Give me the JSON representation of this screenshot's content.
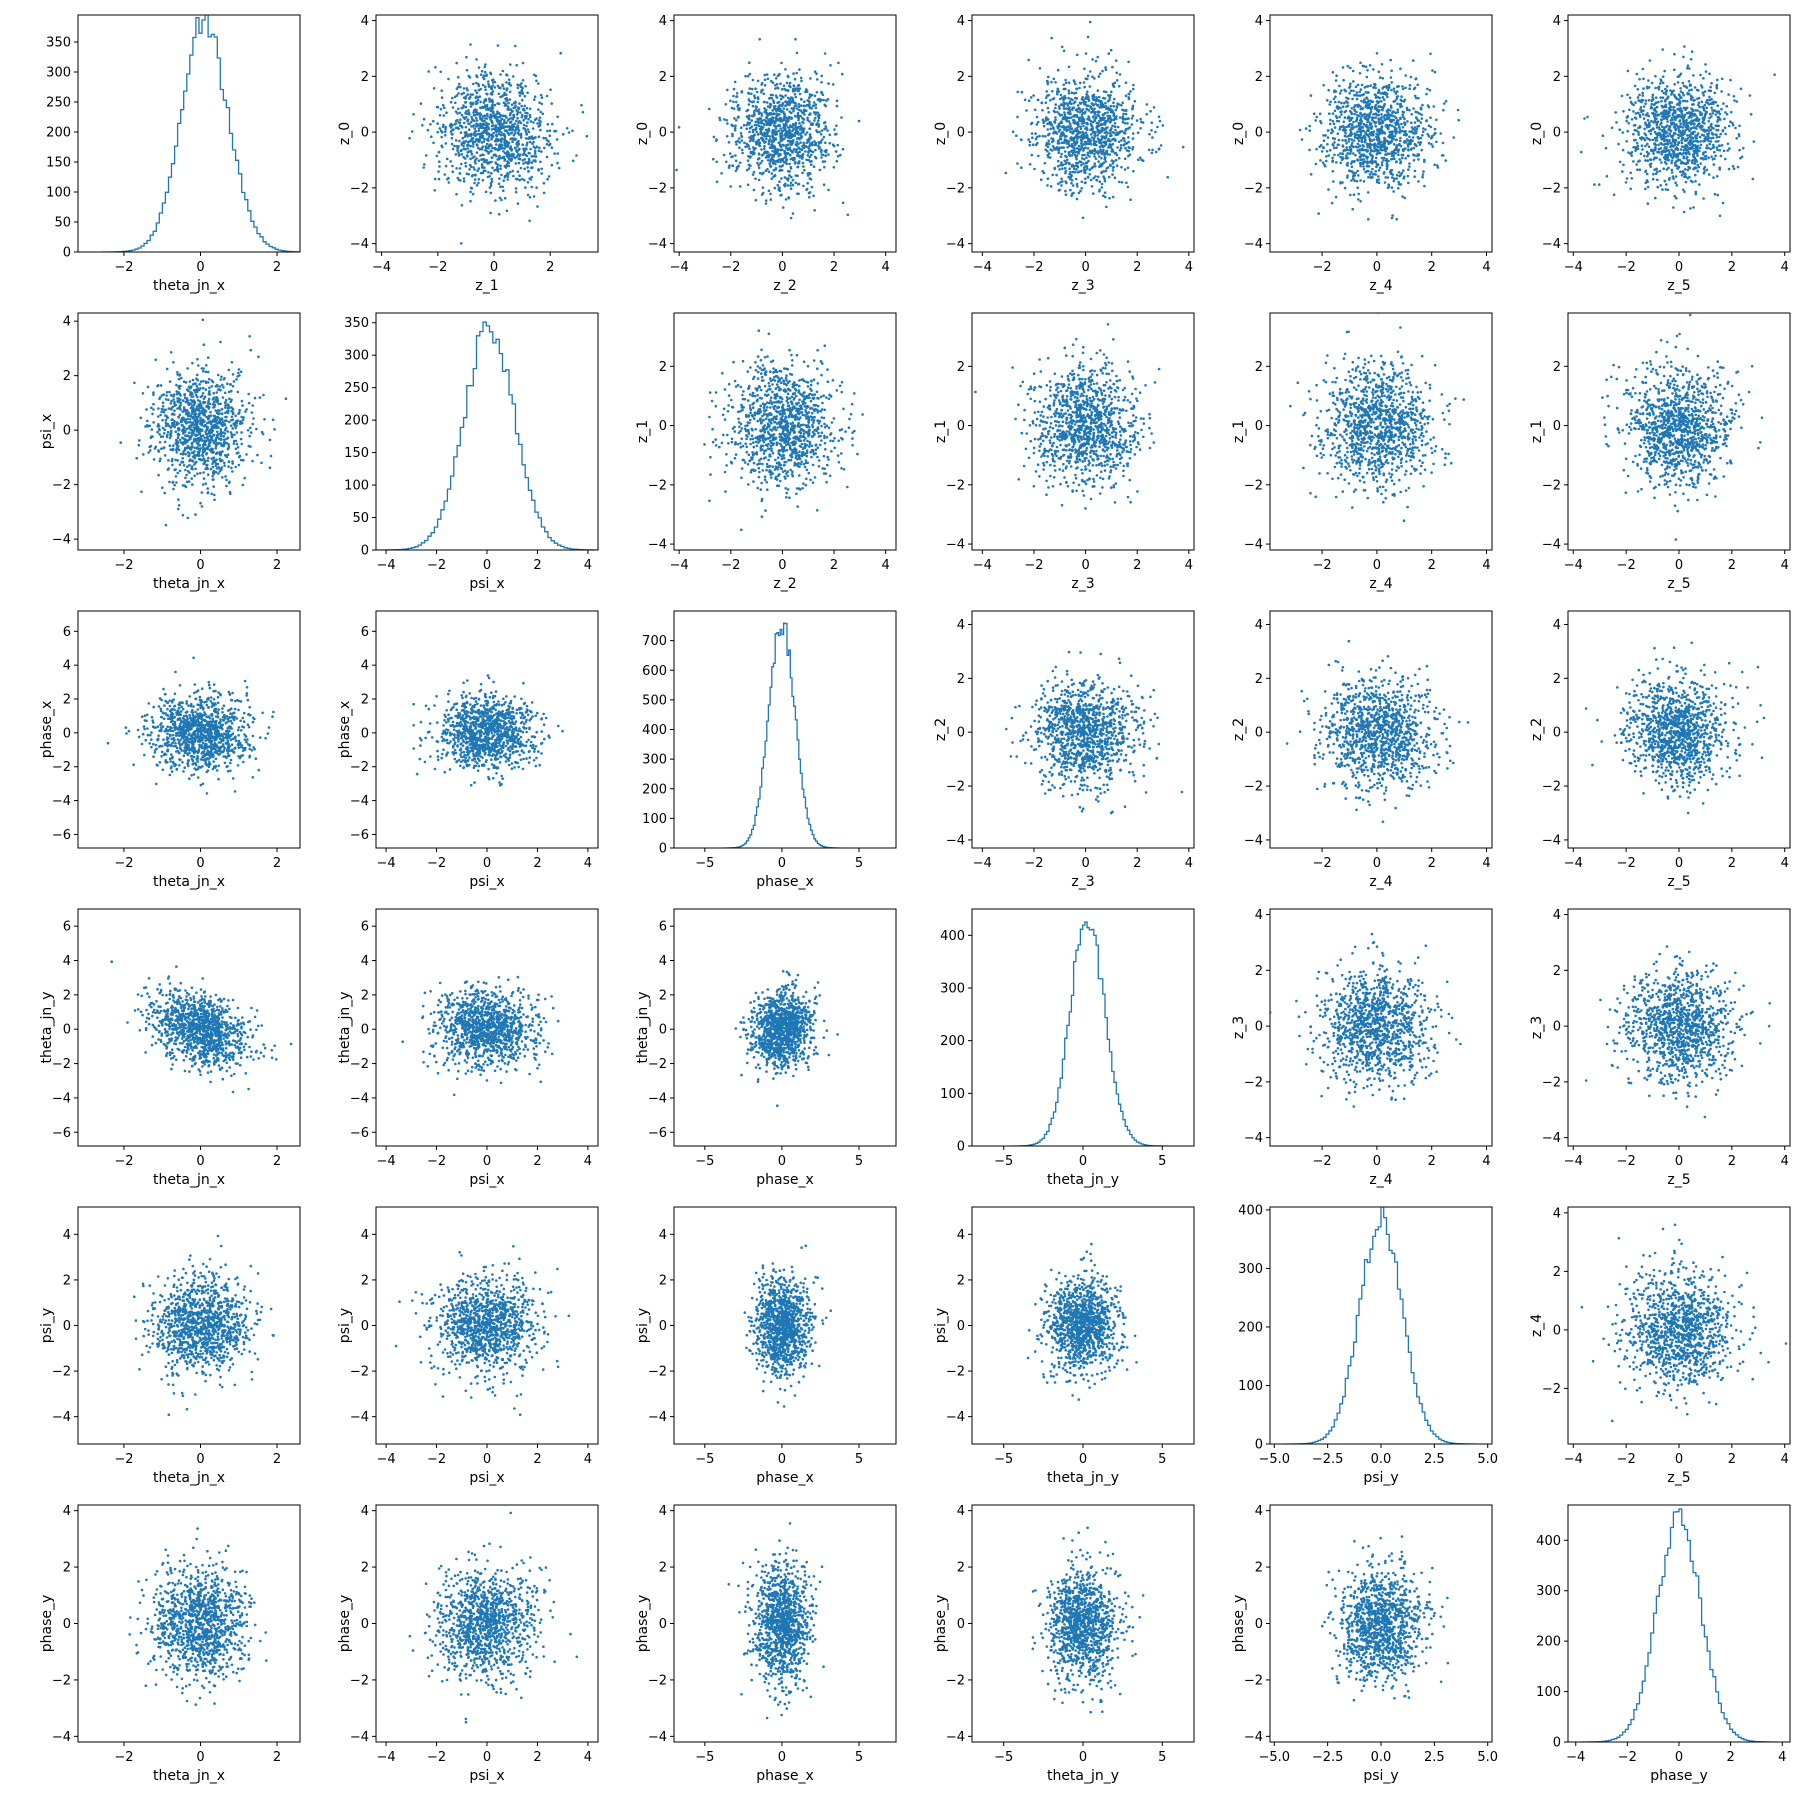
{
  "chart_data": {
    "type": "scatter-matrix",
    "diagonal_type": "histogram (step)",
    "off_diagonal_type": "scatter",
    "color": "#1f77b4",
    "layout": "6x6 grid; upper-triangle panels show latent variables z_0..z_5, lower-triangle panels show pairwise scatter of physical parameters",
    "panels": [
      {
        "row": 0,
        "col": 0,
        "type": "histogram",
        "xlabel": "theta_jn_x",
        "ylabel": "",
        "xlim": [
          -3.2,
          2.6
        ],
        "ylim": [
          0,
          395
        ],
        "xticks": [
          -2,
          0,
          2
        ],
        "yticks": [
          0,
          50,
          100,
          150,
          200,
          250,
          300,
          350
        ],
        "mean": 0.2,
        "std": 0.62,
        "peak": 380,
        "skew": -0.4
      },
      {
        "row": 0,
        "col": 1,
        "type": "scatter",
        "xlabel": "z_1",
        "ylabel": "z_0",
        "xlim": [
          -4.2,
          3.7
        ],
        "ylim": [
          -4.3,
          4.2
        ],
        "xticks": [
          -4,
          -2,
          0,
          2
        ],
        "yticks": [
          -4,
          -2,
          0,
          2,
          4
        ],
        "sx": 1,
        "sy": 1,
        "corr": 0
      },
      {
        "row": 0,
        "col": 2,
        "type": "scatter",
        "xlabel": "z_2",
        "ylabel": "z_0",
        "xlim": [
          -4.2,
          4.4
        ],
        "ylim": [
          -4.3,
          4.2
        ],
        "xticks": [
          -4,
          -2,
          0,
          2,
          4
        ],
        "yticks": [
          -4,
          -2,
          0,
          2,
          4
        ],
        "sx": 1,
        "sy": 1,
        "corr": 0
      },
      {
        "row": 0,
        "col": 3,
        "type": "scatter",
        "xlabel": "z_3",
        "ylabel": "z_0",
        "xlim": [
          -4.4,
          4.2
        ],
        "ylim": [
          -4.3,
          4.2
        ],
        "xticks": [
          -4,
          -2,
          0,
          2,
          4
        ],
        "yticks": [
          -4,
          -2,
          0,
          2,
          4
        ],
        "sx": 1,
        "sy": 1,
        "corr": 0
      },
      {
        "row": 0,
        "col": 4,
        "type": "scatter",
        "xlabel": "z_4",
        "ylabel": "z_0",
        "xlim": [
          -3.9,
          4.2
        ],
        "ylim": [
          -4.3,
          4.2
        ],
        "xticks": [
          -2,
          0,
          2,
          4
        ],
        "yticks": [
          -4,
          -2,
          0,
          2,
          4
        ],
        "sx": 1,
        "sy": 1,
        "corr": 0
      },
      {
        "row": 0,
        "col": 5,
        "type": "scatter",
        "xlabel": "z_5",
        "ylabel": "z_0",
        "xlim": [
          -4.2,
          4.2
        ],
        "ylim": [
          -4.3,
          4.2
        ],
        "xticks": [
          -4,
          -2,
          0,
          2,
          4
        ],
        "yticks": [
          -4,
          -2,
          0,
          2,
          4
        ],
        "sx": 1,
        "sy": 1,
        "corr": 0
      },
      {
        "row": 1,
        "col": 0,
        "type": "scatter",
        "xlabel": "theta_jn_x",
        "ylabel": "psi_x",
        "xlim": [
          -3.2,
          2.6
        ],
        "ylim": [
          -4.4,
          4.3
        ],
        "xticks": [
          -2,
          0,
          2
        ],
        "yticks": [
          -4,
          -2,
          0,
          2,
          4
        ],
        "sx": 0.62,
        "sy": 1.05,
        "corr": 0
      },
      {
        "row": 1,
        "col": 1,
        "type": "histogram",
        "xlabel": "psi_x",
        "ylabel": "",
        "xlim": [
          -4.4,
          4.4
        ],
        "ylim": [
          0,
          365
        ],
        "xticks": [
          -4,
          -2,
          0,
          2,
          4
        ],
        "yticks": [
          0,
          50,
          100,
          150,
          200,
          250,
          300,
          350
        ],
        "mean": 0.1,
        "std": 1.0,
        "peak": 345,
        "skew": 0
      },
      {
        "row": 1,
        "col": 2,
        "type": "scatter",
        "xlabel": "z_2",
        "ylabel": "z_1",
        "xlim": [
          -4.2,
          4.4
        ],
        "ylim": [
          -4.2,
          3.8
        ],
        "xticks": [
          -4,
          -2,
          0,
          2,
          4
        ],
        "yticks": [
          -4,
          -2,
          0,
          2
        ],
        "sx": 1,
        "sy": 1,
        "corr": 0
      },
      {
        "row": 1,
        "col": 3,
        "type": "scatter",
        "xlabel": "z_3",
        "ylabel": "z_1",
        "xlim": [
          -4.4,
          4.2
        ],
        "ylim": [
          -4.2,
          3.8
        ],
        "xticks": [
          -4,
          -2,
          0,
          2,
          4
        ],
        "yticks": [
          -4,
          -2,
          0,
          2
        ],
        "sx": 1,
        "sy": 1,
        "corr": 0
      },
      {
        "row": 1,
        "col": 4,
        "type": "scatter",
        "xlabel": "z_4",
        "ylabel": "z_1",
        "xlim": [
          -3.9,
          4.2
        ],
        "ylim": [
          -4.2,
          3.8
        ],
        "xticks": [
          -2,
          0,
          2,
          4
        ],
        "yticks": [
          -4,
          -2,
          0,
          2
        ],
        "sx": 1,
        "sy": 1,
        "corr": 0
      },
      {
        "row": 1,
        "col": 5,
        "type": "scatter",
        "xlabel": "z_5",
        "ylabel": "z_1",
        "xlim": [
          -4.2,
          4.2
        ],
        "ylim": [
          -4.2,
          3.8
        ],
        "xticks": [
          -4,
          -2,
          0,
          2,
          4
        ],
        "yticks": [
          -4,
          -2,
          0,
          2
        ],
        "sx": 1,
        "sy": 1,
        "corr": 0
      },
      {
        "row": 2,
        "col": 0,
        "type": "scatter",
        "xlabel": "theta_jn_x",
        "ylabel": "phase_x",
        "xlim": [
          -3.2,
          2.6
        ],
        "ylim": [
          -6.8,
          7.2
        ],
        "xticks": [
          -2,
          0,
          2
        ],
        "yticks": [
          -6,
          -4,
          -2,
          0,
          2,
          4,
          6
        ],
        "sx": 0.62,
        "sy": 1.1,
        "corr": 0
      },
      {
        "row": 2,
        "col": 1,
        "type": "scatter",
        "xlabel": "psi_x",
        "ylabel": "phase_x",
        "xlim": [
          -4.4,
          4.4
        ],
        "ylim": [
          -6.8,
          7.2
        ],
        "xticks": [
          -4,
          -2,
          0,
          2,
          4
        ],
        "yticks": [
          -6,
          -4,
          -2,
          0,
          2,
          4,
          6
        ],
        "sx": 1.0,
        "sy": 1.1,
        "corr": 0
      },
      {
        "row": 2,
        "col": 2,
        "type": "histogram",
        "xlabel": "phase_x",
        "ylabel": "",
        "xlim": [
          -7.0,
          7.4
        ],
        "ylim": [
          0,
          800
        ],
        "xticks": [
          -5,
          0,
          5
        ],
        "yticks": [
          0,
          100,
          200,
          300,
          400,
          500,
          600,
          700
        ],
        "mean": 0.0,
        "std": 0.85,
        "peak": 760,
        "skew": 0
      },
      {
        "row": 2,
        "col": 3,
        "type": "scatter",
        "xlabel": "z_3",
        "ylabel": "z_2",
        "xlim": [
          -4.4,
          4.2
        ],
        "ylim": [
          -4.3,
          4.5
        ],
        "xticks": [
          -4,
          -2,
          0,
          2,
          4
        ],
        "yticks": [
          -4,
          -2,
          0,
          2,
          4
        ],
        "sx": 1,
        "sy": 1,
        "corr": 0
      },
      {
        "row": 2,
        "col": 4,
        "type": "scatter",
        "xlabel": "z_4",
        "ylabel": "z_2",
        "xlim": [
          -3.9,
          4.2
        ],
        "ylim": [
          -4.3,
          4.5
        ],
        "xticks": [
          -2,
          0,
          2,
          4
        ],
        "yticks": [
          -4,
          -2,
          0,
          2,
          4
        ],
        "sx": 1,
        "sy": 1,
        "corr": 0
      },
      {
        "row": 2,
        "col": 5,
        "type": "scatter",
        "xlabel": "z_5",
        "ylabel": "z_2",
        "xlim": [
          -4.2,
          4.2
        ],
        "ylim": [
          -4.3,
          4.5
        ],
        "xticks": [
          -4,
          -2,
          0,
          2,
          4
        ],
        "yticks": [
          -4,
          -2,
          0,
          2,
          4
        ],
        "sx": 1,
        "sy": 1,
        "corr": 0
      },
      {
        "row": 3,
        "col": 0,
        "type": "scatter",
        "xlabel": "theta_jn_x",
        "ylabel": "theta_jn_y",
        "xlim": [
          -3.2,
          2.6
        ],
        "ylim": [
          -6.8,
          7.0
        ],
        "xticks": [
          -2,
          0,
          2
        ],
        "yticks": [
          -6,
          -4,
          -2,
          0,
          2,
          4,
          6
        ],
        "sx": 0.62,
        "sy": 1.1,
        "corr": -0.3
      },
      {
        "row": 3,
        "col": 1,
        "type": "scatter",
        "xlabel": "psi_x",
        "ylabel": "theta_jn_y",
        "xlim": [
          -4.4,
          4.4
        ],
        "ylim": [
          -6.8,
          7.0
        ],
        "xticks": [
          -4,
          -2,
          0,
          2,
          4
        ],
        "yticks": [
          -6,
          -4,
          -2,
          0,
          2,
          4,
          6
        ],
        "sx": 1.0,
        "sy": 1.1,
        "corr": 0
      },
      {
        "row": 3,
        "col": 2,
        "type": "scatter",
        "xlabel": "phase_x",
        "ylabel": "theta_jn_y",
        "xlim": [
          -7.0,
          7.4
        ],
        "ylim": [
          -6.8,
          7.0
        ],
        "xticks": [
          -5,
          0,
          5
        ],
        "yticks": [
          -6,
          -4,
          -2,
          0,
          2,
          4,
          6
        ],
        "sx": 1.0,
        "sy": 1.1,
        "corr": 0.15
      },
      {
        "row": 3,
        "col": 3,
        "type": "histogram",
        "xlabel": "theta_jn_y",
        "ylabel": "",
        "xlim": [
          -7.0,
          7.0
        ],
        "ylim": [
          0,
          450
        ],
        "xticks": [
          -5,
          0,
          5
        ],
        "yticks": [
          0,
          100,
          200,
          300,
          400
        ],
        "mean": 0.4,
        "std": 1.1,
        "peak": 430,
        "skew": -0.3
      },
      {
        "row": 3,
        "col": 4,
        "type": "scatter",
        "xlabel": "z_4",
        "ylabel": "z_3",
        "xlim": [
          -3.9,
          4.2
        ],
        "ylim": [
          -4.3,
          4.2
        ],
        "xticks": [
          -2,
          0,
          2,
          4
        ],
        "yticks": [
          -4,
          -2,
          0,
          2,
          4
        ],
        "sx": 1,
        "sy": 1,
        "corr": 0
      },
      {
        "row": 3,
        "col": 5,
        "type": "scatter",
        "xlabel": "z_5",
        "ylabel": "z_3",
        "xlim": [
          -4.2,
          4.2
        ],
        "ylim": [
          -4.3,
          4.2
        ],
        "xticks": [
          -4,
          -2,
          0,
          2,
          4
        ],
        "yticks": [
          -4,
          -2,
          0,
          2,
          4
        ],
        "sx": 1,
        "sy": 1,
        "corr": 0
      },
      {
        "row": 4,
        "col": 0,
        "type": "scatter",
        "xlabel": "theta_jn_x",
        "ylabel": "psi_y",
        "xlim": [
          -3.2,
          2.6
        ],
        "ylim": [
          -5.2,
          5.2
        ],
        "xticks": [
          -2,
          0,
          2
        ],
        "yticks": [
          -4,
          -2,
          0,
          2,
          4
        ],
        "sx": 0.62,
        "sy": 1.05,
        "corr": 0
      },
      {
        "row": 4,
        "col": 1,
        "type": "scatter",
        "xlabel": "psi_x",
        "ylabel": "psi_y",
        "xlim": [
          -4.4,
          4.4
        ],
        "ylim": [
          -5.2,
          5.2
        ],
        "xticks": [
          -4,
          -2,
          0,
          2,
          4
        ],
        "yticks": [
          -4,
          -2,
          0,
          2,
          4
        ],
        "sx": 1.0,
        "sy": 1.05,
        "corr": 0
      },
      {
        "row": 4,
        "col": 2,
        "type": "scatter",
        "xlabel": "phase_x",
        "ylabel": "psi_y",
        "xlim": [
          -7.0,
          7.4
        ],
        "ylim": [
          -5.2,
          5.2
        ],
        "xticks": [
          -5,
          0,
          5
        ],
        "yticks": [
          -4,
          -2,
          0,
          2,
          4
        ],
        "sx": 0.9,
        "sy": 1.05,
        "corr": 0
      },
      {
        "row": 4,
        "col": 3,
        "type": "scatter",
        "xlabel": "theta_jn_y",
        "ylabel": "psi_y",
        "xlim": [
          -7.0,
          7.0
        ],
        "ylim": [
          -5.2,
          5.2
        ],
        "xticks": [
          -5,
          0,
          5
        ],
        "yticks": [
          -4,
          -2,
          0,
          2,
          4
        ],
        "sx": 1.1,
        "sy": 1.05,
        "corr": 0
      },
      {
        "row": 4,
        "col": 4,
        "type": "histogram",
        "xlabel": "psi_y",
        "ylabel": "",
        "xlim": [
          -5.2,
          5.2
        ],
        "ylim": [
          0,
          405
        ],
        "xticks": [
          -5.0,
          -2.5,
          0.0,
          2.5,
          5.0
        ],
        "tick_labels": [
          "−5.0",
          "−2.5",
          "0.0",
          "2.5",
          "5.0"
        ],
        "yticks": [
          0,
          100,
          200,
          300,
          400
        ],
        "mean": 0.0,
        "std": 1.0,
        "peak": 385,
        "skew": 0
      },
      {
        "row": 4,
        "col": 5,
        "type": "scatter",
        "xlabel": "z_5",
        "ylabel": "z_4",
        "xlim": [
          -4.2,
          4.2
        ],
        "ylim": [
          -3.9,
          4.2
        ],
        "xticks": [
          -4,
          -2,
          0,
          2,
          4
        ],
        "yticks": [
          -2,
          0,
          2,
          4
        ],
        "sx": 1,
        "sy": 1,
        "corr": 0
      },
      {
        "row": 5,
        "col": 0,
        "type": "scatter",
        "xlabel": "theta_jn_x",
        "ylabel": "phase_y",
        "xlim": [
          -3.2,
          2.6
        ],
        "ylim": [
          -4.2,
          4.2
        ],
        "xticks": [
          -2,
          0,
          2
        ],
        "yticks": [
          -4,
          -2,
          0,
          2,
          4
        ],
        "sx": 0.62,
        "sy": 1.0,
        "corr": 0
      },
      {
        "row": 5,
        "col": 1,
        "type": "scatter",
        "xlabel": "psi_x",
        "ylabel": "phase_y",
        "xlim": [
          -4.4,
          4.4
        ],
        "ylim": [
          -4.2,
          4.2
        ],
        "xticks": [
          -4,
          -2,
          0,
          2,
          4
        ],
        "yticks": [
          -4,
          -2,
          0,
          2,
          4
        ],
        "sx": 1.0,
        "sy": 1.0,
        "corr": 0.1
      },
      {
        "row": 5,
        "col": 2,
        "type": "scatter",
        "xlabel": "phase_x",
        "ylabel": "phase_y",
        "xlim": [
          -7.0,
          7.4
        ],
        "ylim": [
          -4.2,
          4.2
        ],
        "xticks": [
          -5,
          0,
          5
        ],
        "yticks": [
          -4,
          -2,
          0,
          2,
          4
        ],
        "sx": 0.9,
        "sy": 1.0,
        "corr": 0
      },
      {
        "row": 5,
        "col": 3,
        "type": "scatter",
        "xlabel": "theta_jn_y",
        "ylabel": "phase_y",
        "xlim": [
          -7.0,
          7.0
        ],
        "ylim": [
          -4.2,
          4.2
        ],
        "xticks": [
          -5,
          0,
          5
        ],
        "yticks": [
          -4,
          -2,
          0,
          2,
          4
        ],
        "sx": 1.1,
        "sy": 1.0,
        "corr": 0
      },
      {
        "row": 5,
        "col": 4,
        "type": "scatter",
        "xlabel": "psi_y",
        "ylabel": "phase_y",
        "xlim": [
          -5.2,
          5.2
        ],
        "ylim": [
          -4.2,
          4.2
        ],
        "xticks": [
          -5.0,
          -2.5,
          0.0,
          2.5,
          5.0
        ],
        "tick_labels": [
          "−5.0",
          "−2.5",
          "0.0",
          "2.5",
          "5.0"
        ],
        "yticks": [
          -4,
          -2,
          0,
          2,
          4
        ],
        "sx": 1.0,
        "sy": 1.0,
        "corr": 0
      },
      {
        "row": 5,
        "col": 5,
        "type": "histogram",
        "xlabel": "phase_y",
        "ylabel": "",
        "xlim": [
          -4.3,
          4.3
        ],
        "ylim": [
          0,
          470
        ],
        "xticks": [
          -4,
          -2,
          0,
          2,
          4
        ],
        "yticks": [
          0,
          100,
          200,
          300,
          400
        ],
        "mean": 0.0,
        "std": 0.85,
        "peak": 445,
        "skew": 0
      }
    ]
  }
}
